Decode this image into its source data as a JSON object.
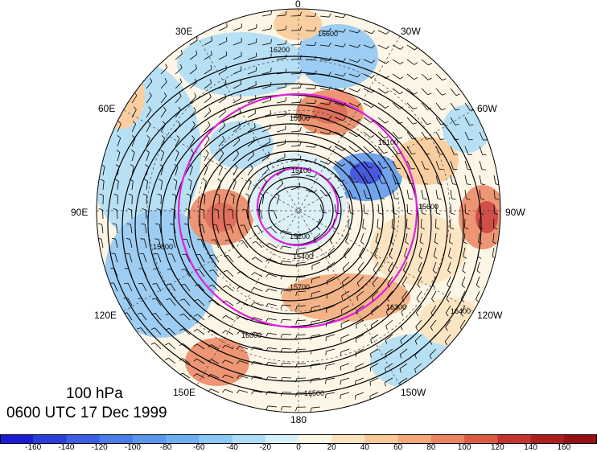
{
  "map": {
    "projection": "north-polar-stereographic",
    "level_label": "100 hPa",
    "time_label": "0600 UTC 17 Dec 1999",
    "longitude_labels": [
      {
        "name": "lon-0",
        "text": "0"
      },
      {
        "name": "lon-30w",
        "text": "30W"
      },
      {
        "name": "lon-60w",
        "text": "60W"
      },
      {
        "name": "lon-90w",
        "text": "90W"
      },
      {
        "name": "lon-120w",
        "text": "120W"
      },
      {
        "name": "lon-150w",
        "text": "150W"
      },
      {
        "name": "lon-180",
        "text": "180"
      },
      {
        "name": "lon-150e",
        "text": "150E"
      },
      {
        "name": "lon-120e",
        "text": "120E"
      },
      {
        "name": "lon-90e",
        "text": "90E"
      },
      {
        "name": "lon-60e",
        "text": "60E"
      },
      {
        "name": "lon-30e",
        "text": "30E"
      }
    ],
    "contour_labels": [
      "16400",
      "16200",
      "16000",
      "15800",
      "15600",
      "15400",
      "15200",
      "15100",
      "15700",
      "15900",
      "16100",
      "16300",
      "16500",
      "16600"
    ],
    "polar_vortex_ring_color": "#e020e0"
  },
  "colorbar": {
    "ticks": [
      "-160",
      "-140",
      "-120",
      "-100",
      "-80",
      "-60",
      "-40",
      "-20",
      "0",
      "20",
      "40",
      "60",
      "80",
      "100",
      "120",
      "140",
      "160"
    ],
    "colors": [
      "#1a1ad8",
      "#2a3ee0",
      "#3a5ee6",
      "#4a7cea",
      "#5a96ee",
      "#70aef2",
      "#8cc6f4",
      "#acdcf6",
      "#d6f0fa",
      "#fdf8e4",
      "#fce2bc",
      "#f8c896",
      "#f2a878",
      "#ea8460",
      "#dc5a44",
      "#c8322c",
      "#b01c1e",
      "#960f14"
    ]
  }
}
